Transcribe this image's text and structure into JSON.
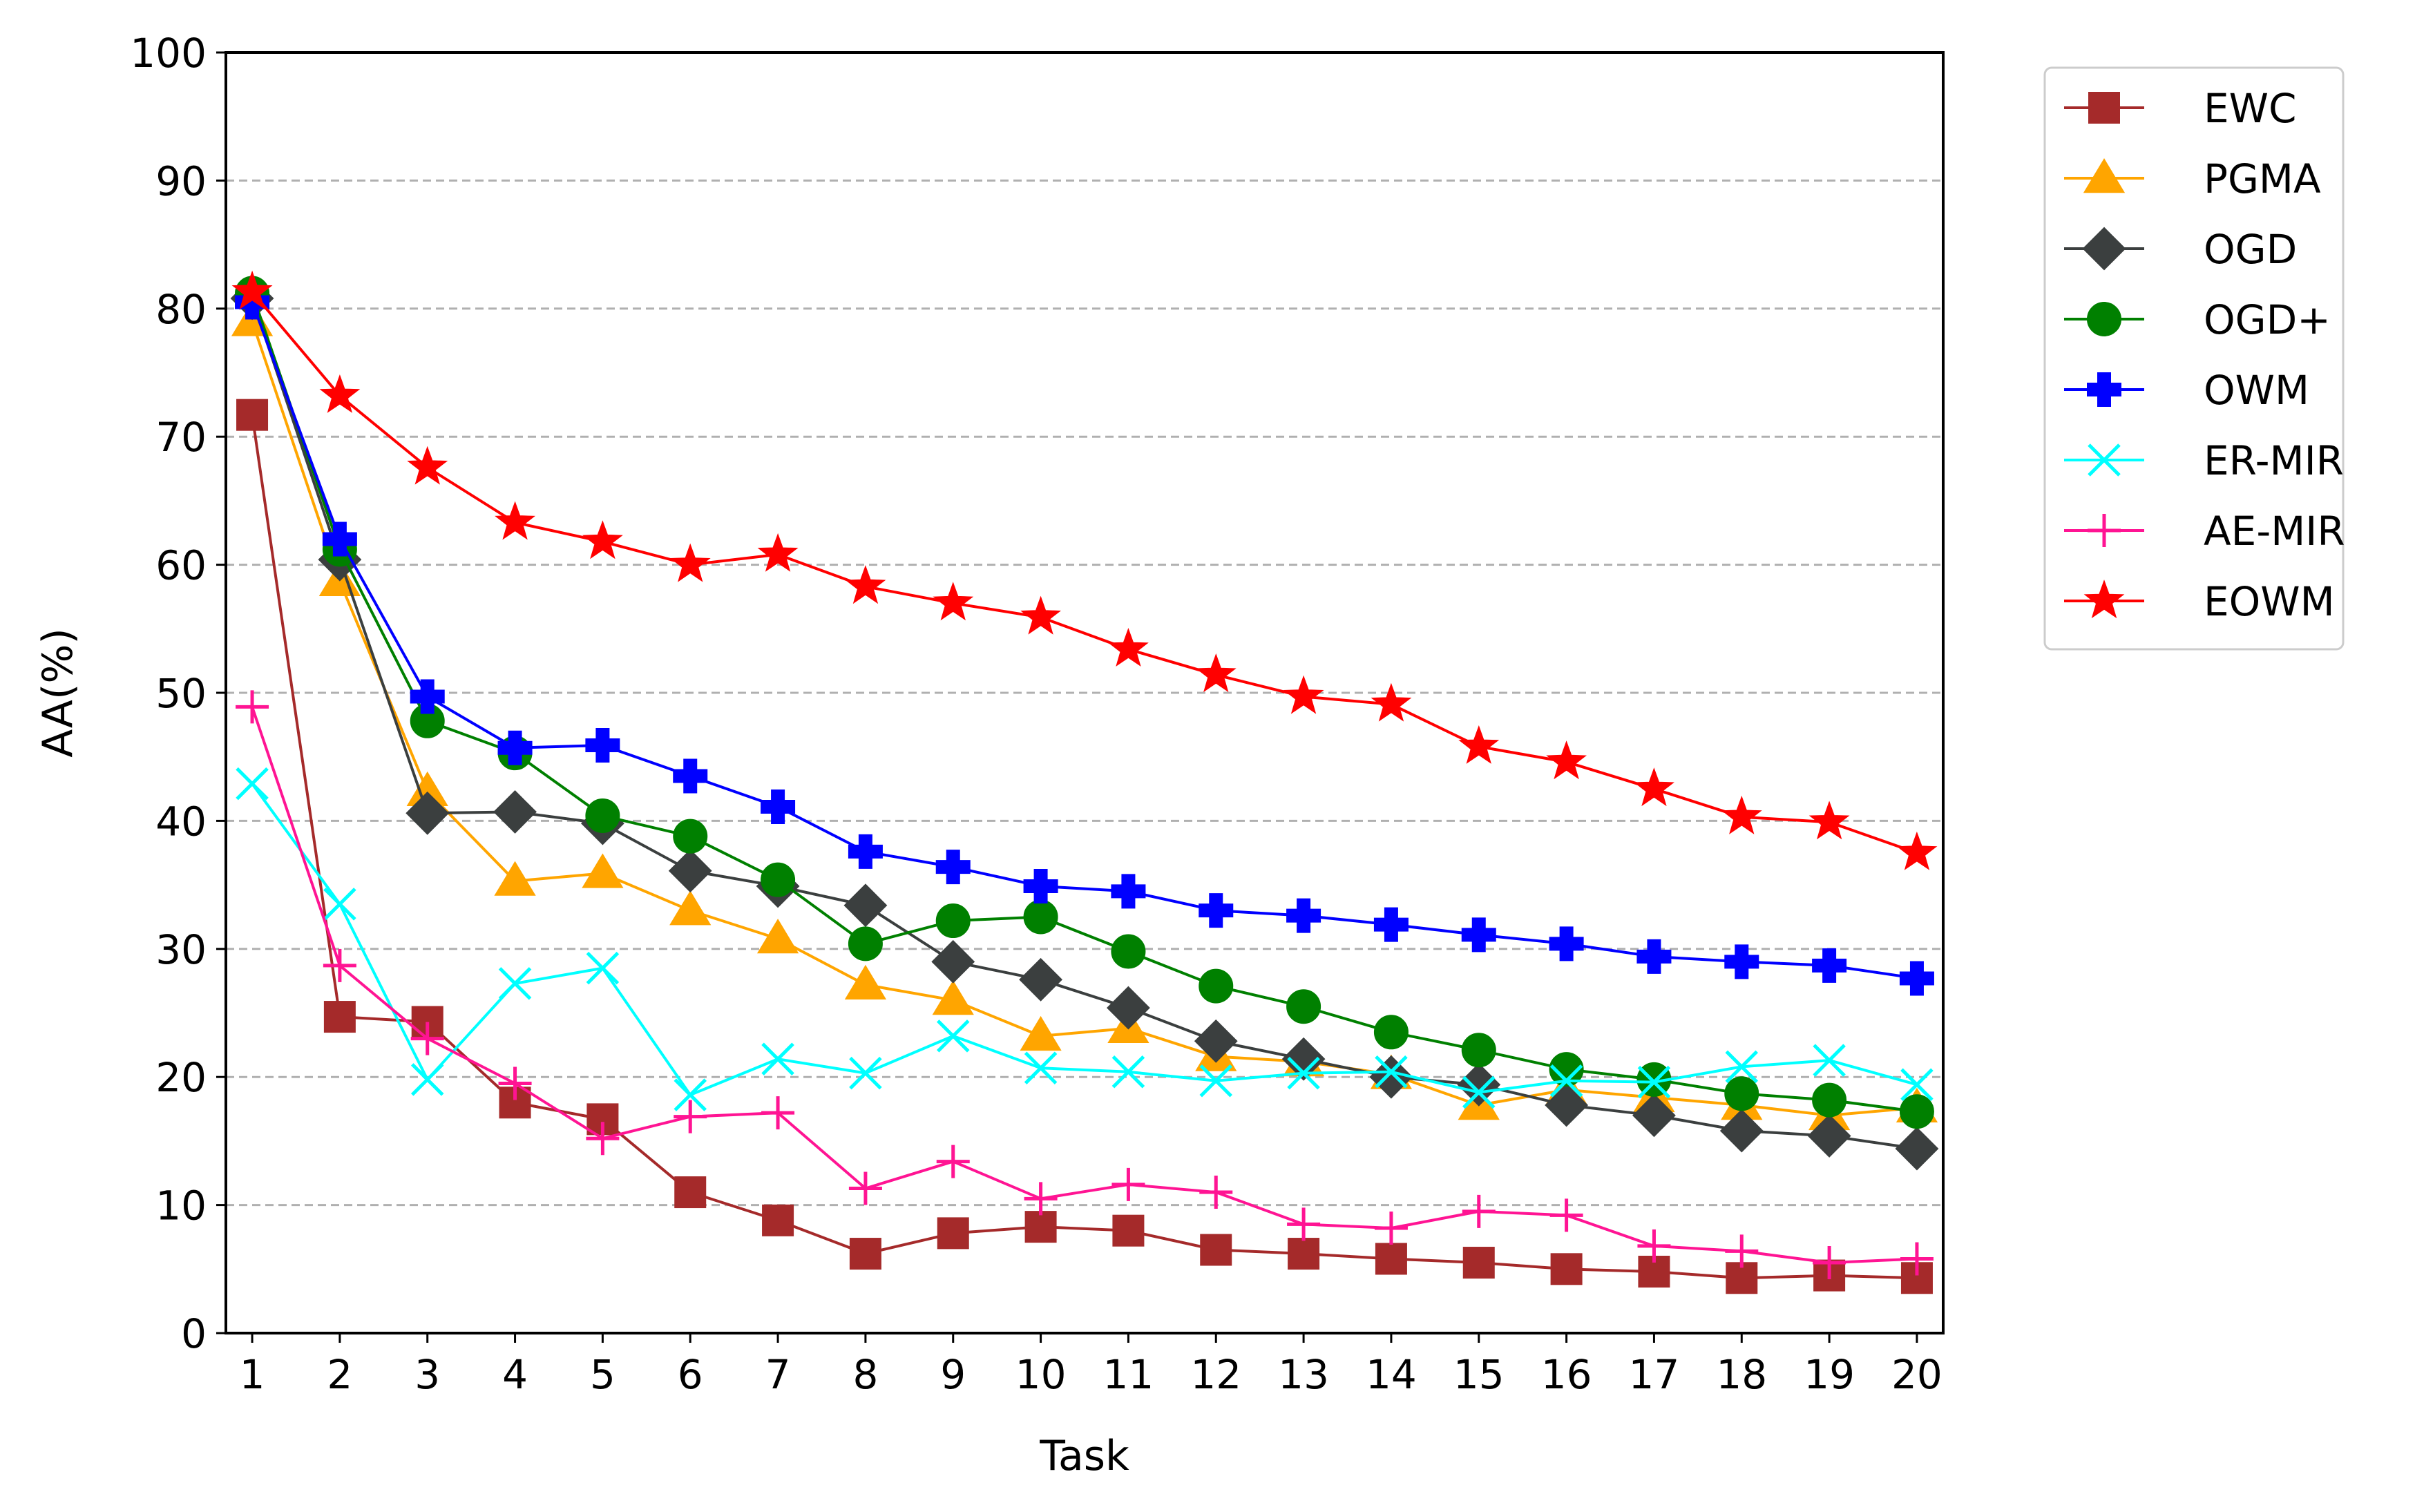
{
  "chart_data": {
    "type": "line",
    "title": "",
    "xlabel": "Task",
    "ylabel": "AA(%)",
    "x": [
      1,
      2,
      3,
      4,
      5,
      6,
      7,
      8,
      9,
      10,
      11,
      12,
      13,
      14,
      15,
      16,
      17,
      18,
      19,
      20
    ],
    "xlim": [
      0.7,
      20.3
    ],
    "ylim": [
      0,
      100
    ],
    "yticks": [
      0,
      10,
      20,
      30,
      40,
      50,
      60,
      70,
      80,
      90,
      100
    ],
    "grid": "horizontal dashed",
    "legend_position": "outside-right-top",
    "series": [
      {
        "name": "EWC",
        "color": "#a52a2a",
        "marker": "square",
        "values": [
          71.7,
          24.7,
          24.3,
          18.0,
          16.7,
          11.0,
          8.8,
          6.2,
          7.8,
          8.3,
          8.0,
          6.5,
          6.2,
          5.8,
          5.5,
          5.0,
          4.8,
          4.3,
          4.5,
          4.3
        ]
      },
      {
        "name": "PGMA",
        "color": "#ffa500",
        "marker": "triangle",
        "values": [
          79.0,
          58.7,
          42.3,
          35.3,
          35.9,
          33.0,
          30.8,
          27.2,
          26.0,
          23.2,
          23.8,
          21.6,
          21.2,
          20.2,
          17.8,
          19.0,
          18.4,
          17.8,
          17.0,
          17.6
        ]
      },
      {
        "name": "OGD",
        "color": "#3b3f3f",
        "marker": "diamond",
        "values": [
          80.8,
          60.4,
          40.6,
          40.7,
          39.8,
          36.1,
          34.9,
          33.4,
          29.0,
          27.6,
          25.4,
          22.8,
          21.4,
          20.0,
          19.4,
          17.8,
          17.0,
          15.8,
          15.4,
          14.4
        ]
      },
      {
        "name": "OGD+",
        "color": "#008000",
        "marker": "circle",
        "values": [
          81.2,
          61.2,
          47.8,
          45.3,
          40.4,
          38.8,
          35.4,
          30.4,
          32.2,
          32.5,
          29.8,
          27.1,
          25.5,
          23.5,
          22.1,
          20.6,
          19.8,
          18.7,
          18.2,
          17.3
        ]
      },
      {
        "name": "OWM",
        "color": "#0000ff",
        "marker": "plus-filled",
        "values": [
          80.5,
          62.0,
          49.7,
          45.7,
          45.9,
          43.5,
          41.1,
          37.6,
          36.4,
          34.9,
          34.5,
          33.0,
          32.6,
          31.9,
          31.1,
          30.4,
          29.4,
          29.0,
          28.7,
          27.7
        ]
      },
      {
        "name": "ER-MIR",
        "color": "#00ffff",
        "marker": "x",
        "values": [
          42.9,
          33.5,
          19.8,
          27.3,
          28.5,
          18.6,
          21.4,
          20.3,
          23.2,
          20.7,
          20.4,
          19.7,
          20.3,
          20.4,
          18.8,
          19.7,
          19.6,
          20.8,
          21.3,
          19.4
        ]
      },
      {
        "name": "AE-MIR",
        "color": "#ff1493",
        "marker": "plus",
        "values": [
          48.9,
          28.7,
          23.0,
          19.5,
          15.2,
          16.9,
          17.2,
          11.3,
          13.4,
          10.5,
          11.6,
          11.0,
          8.5,
          8.2,
          9.5,
          9.2,
          6.8,
          6.4,
          5.5,
          5.8
        ]
      },
      {
        "name": "EOWM",
        "color": "#ff0000",
        "marker": "star",
        "values": [
          81.3,
          73.2,
          67.6,
          63.3,
          61.8,
          60.0,
          60.8,
          58.3,
          57.0,
          55.9,
          53.4,
          51.4,
          49.7,
          49.1,
          45.8,
          44.6,
          42.5,
          40.3,
          39.9,
          37.5
        ]
      }
    ]
  }
}
